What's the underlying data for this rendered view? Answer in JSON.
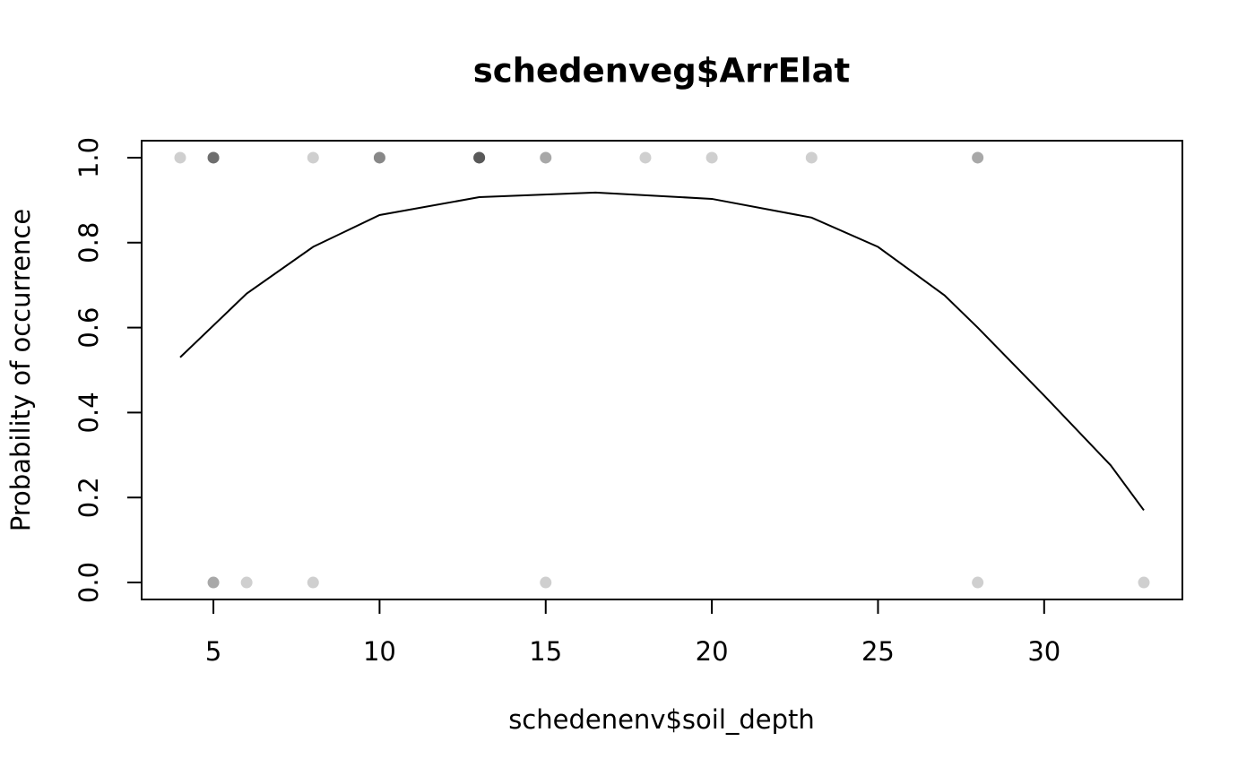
{
  "chart_data": {
    "type": "scatter",
    "title": "schedenveg$ArrElat",
    "x_label": "schedenenv$soil_depth",
    "y_label": "Probability of occurrence",
    "points": {
      "color": "#000000",
      "opacity": 0.19,
      "x": [
        4,
        5,
        5,
        5,
        5,
        8,
        10,
        10,
        10,
        13,
        13,
        13,
        13,
        13,
        15,
        15,
        18,
        20,
        23,
        28,
        28,
        5,
        5,
        6,
        8,
        15,
        28,
        33
      ],
      "values": [
        1,
        1,
        1,
        1,
        1,
        1,
        1,
        1,
        1,
        1,
        1,
        1,
        1,
        1,
        1,
        1,
        1,
        1,
        1,
        1,
        1,
        0,
        0,
        0,
        0,
        0,
        0,
        0
      ]
    },
    "curve": {
      "color": "#000000",
      "x": [
        4,
        6,
        8,
        10,
        13,
        16.5,
        20,
        23,
        25,
        27,
        28,
        30,
        32,
        33
      ],
      "values": [
        0.53,
        0.68,
        0.79,
        0.865,
        0.907,
        0.918,
        0.903,
        0.859,
        0.79,
        0.676,
        0.6,
        0.44,
        0.276,
        0.17
      ]
    },
    "xlim": [
      2.84,
      34.16
    ],
    "ylim": [
      -0.04,
      1.04
    ],
    "xticks": [
      5,
      10,
      15,
      20,
      25,
      30
    ],
    "yticks": [
      {
        "value": 0,
        "label": "0.0"
      },
      {
        "value": 0.2,
        "label": "0.2"
      },
      {
        "value": 0.4,
        "label": "0.4"
      },
      {
        "value": 0.6,
        "label": "0.6"
      },
      {
        "value": 0.8,
        "label": "0.8"
      },
      {
        "value": 1,
        "label": "1.0"
      }
    ]
  }
}
